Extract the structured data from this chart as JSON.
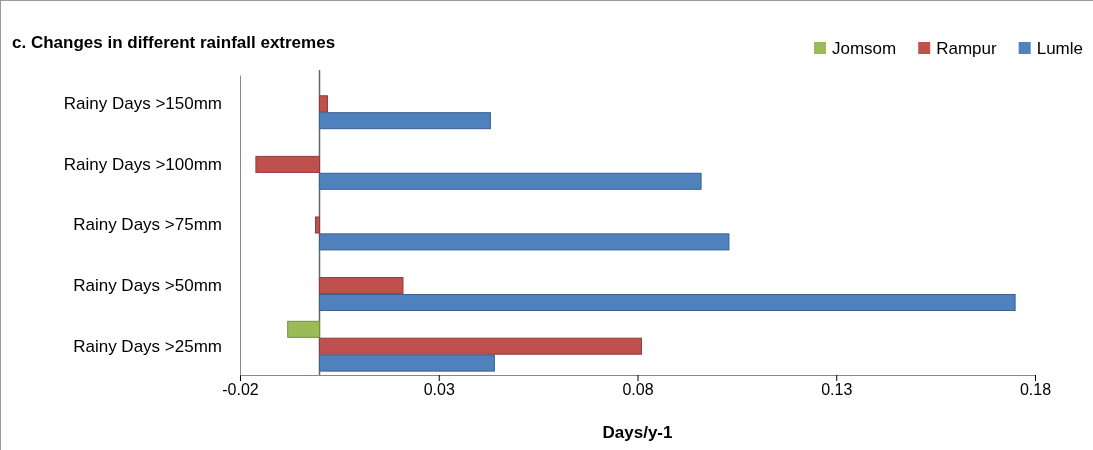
{
  "chart_data": {
    "type": "bar",
    "orientation": "horizontal",
    "title": "c. Changes in different rainfall extremes",
    "xlabel": "Days/y-1",
    "categories": [
      "Rainy Days >150mm",
      "Rainy Days >100mm",
      "Rainy Days >75mm",
      "Rainy Days >50mm",
      "Rainy Days >25mm"
    ],
    "series": [
      {
        "name": "Jomsom",
        "color": "#9bbb59",
        "values": [
          0,
          0,
          0,
          0,
          -0.008
        ]
      },
      {
        "name": "Rampur",
        "color": "#c0504d",
        "values": [
          0.002,
          -0.016,
          -0.001,
          0.021,
          0.081
        ]
      },
      {
        "name": "Lumle",
        "color": "#4f81bd",
        "values": [
          0.043,
          0.096,
          0.103,
          0.175,
          0.044
        ]
      }
    ],
    "xlim": [
      -0.02,
      0.18
    ],
    "xticks": [
      -0.02,
      0.03,
      0.08,
      0.13,
      0.18
    ],
    "legend": "top right",
    "grid": false
  }
}
